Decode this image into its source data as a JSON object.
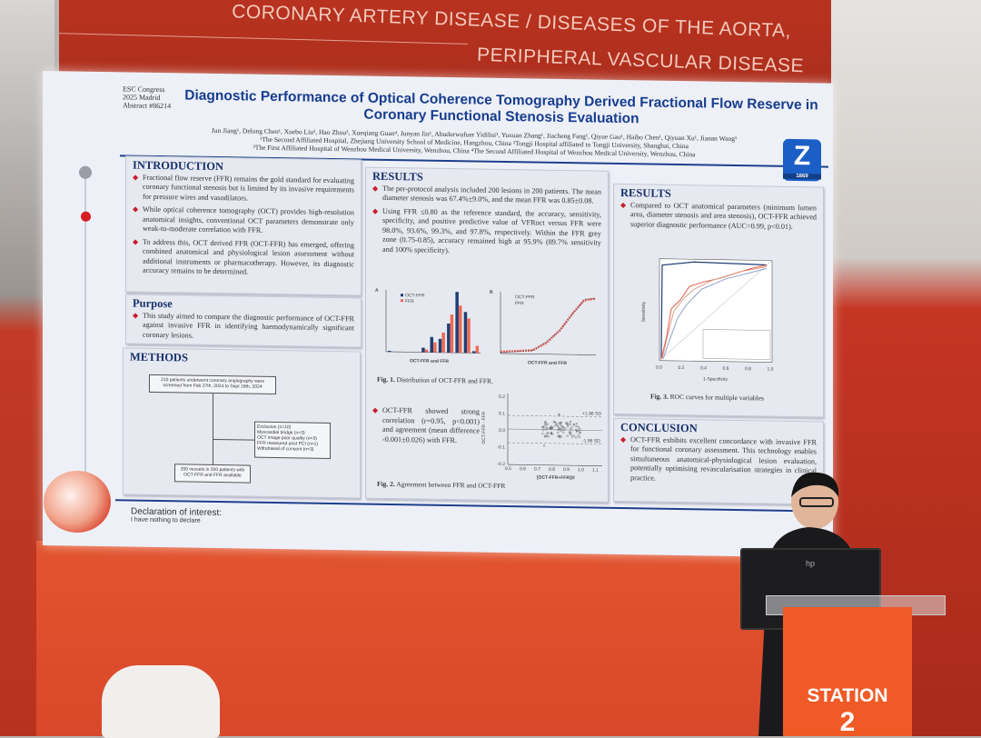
{
  "banner": {
    "line1": "CORONARY ARTERY DISEASE / DISEASES OF THE AORTA,",
    "line2": "PERIPHERAL VASCULAR DISEASE"
  },
  "poster": {
    "esc": [
      "ESC Congress",
      "2025 Madrid",
      "Abstract #86214"
    ],
    "title": "Diagnostic Performance of Optical Coherence Tomography Derived Fractional Flow Reserve in Coronary Functional Stenosis Evaluation",
    "authors": "Jun Jiang¹, Delong Chen¹, Xuebo Liu², Hao Zhou³, Xueqiang Guan⁴, Junyan Jin¹, Abudurwufuer Yidilisi¹, Yuxuan Zhang¹, Jiacheng Fang¹, Qiyue Gao¹, Haibo Chen¹, Qiyuan Xu¹, Jianan Wang¹",
    "affiliation1": "¹The Second Affiliated Hospital, Zhejiang University School of Medicine, Hangzhou, China ²Tongji Hospital affiliated to Tongji University, Shanghai, China",
    "affiliation2": "³The First Affiliated Hospital of Wenzhou Medical University, Wenzhou, China ⁴The Second Affiliated Hospital of Wenzhou Medical University, Wenzhou, China",
    "logo": {
      "letter": "Z",
      "year": "1869"
    },
    "introduction": {
      "heading": "INTRODUCTION",
      "bullets": [
        "Fractional flow reserve (FFR) remains the gold standard for evaluating coronary functional stenosis but is limited by its invasive requirements for pressure wires and vasodilators.",
        "While optical coherence tomography (OCT) provides high-resolution anatomical insights, conventional OCT parameters demonstrate only weak-to-moderate correlation with FFR.",
        "To address this, OCT derived FFR (OCT-FFR) has emerged, offering combined anatomical and physiological lesion assessment without additional instruments or pharmacotherapy. However, its diagnostic accuracy remains to be determined."
      ]
    },
    "purpose": {
      "heading": "Purpose",
      "bullets": [
        "This study aimed to compare the diagnostic performance of OCT-FFR against invasive FFR in identifying haemodynamically significant coronary lesions."
      ]
    },
    "methods": {
      "heading": "METHODS",
      "flow_top": "210 patients underwent coronary angiography were screened from Feb 27th, 2024 to Sept 19th, 2024",
      "flow_exclusion": [
        "Exclusion (n=10)",
        "Myocardial bridge (n=3)",
        "OCT image poor quality (n=3)",
        "FFR measured post PCI (n=1)",
        "Withdrawal of consent (n=3)"
      ],
      "flow_bottom": "200 vessels in 200 patients with OCT-FFR and FFR available"
    },
    "results_mid": {
      "heading": "RESULTS",
      "bullets": [
        "The per-protocol analysis included 200 lesions in 200 patients. The mean diameter stenosis was 67.4%±9.0%, and the mean FFR was 0.85±0.08.",
        "Using FFR ≤0.80 as the reference standard, the accuracy, sensitivity, specificity, and positive predictive value of VFRoct versus FFR were 98.0%, 93.6%, 99.3%, and 97.8%, respectively. Within the FFR grey zone (0.75-0.85), accuracy remained high at 95.9% (89.7% sensitivity and 100% specificity)."
      ],
      "fig1": {
        "panel_a": "A",
        "panel_b": "B",
        "legend": [
          "OCT-FFR",
          "FFR"
        ],
        "xlabel": "OCT-FFR and FFR",
        "caption_bold": "Fig. 1.",
        "caption": " Distribution of OCT-FFR and FFR."
      },
      "bullet3": "OCT-FFR showed strong correlation (r=0.95, p<0.001) and agreement (mean difference -0.001±0.026) with FFR.",
      "fig2": {
        "xlabel": "[OCT-FFR+FFR]/2",
        "ylabel": "OCT-FFR - FFR",
        "upper": "+1.96 SD",
        "lower": "-1.96 SD",
        "yticks": [
          "0.2",
          "0.1",
          "0.0",
          "-0.1",
          "-0.2"
        ],
        "xticks": [
          "0.5",
          "0.6",
          "0.7",
          "0.8",
          "0.9",
          "1.0",
          "1.1"
        ],
        "caption_bold": "Fig. 2.",
        "caption": " Agreement between FFR and OCT-FFR"
      }
    },
    "results_right": {
      "heading": "RESULTS",
      "bullets": [
        "Compared to OCT anatomical parameters (minimum lumen area, diameter stenosis and area stenosis), OCT-FFR achieved superior diagnostic performance (AUC=0.99, p<0.01)."
      ],
      "fig3": {
        "xticks": [
          "0.0",
          "0.2",
          "0.4",
          "0.6",
          "0.8",
          "1.0"
        ],
        "xlabel": "1-Specificity",
        "ylabel": "Sensitivity",
        "caption_bold": "Fig. 3.",
        "caption": " ROC curves for multiple variables"
      }
    },
    "conclusion": {
      "heading": "CONCLUSION",
      "bullets": [
        "OCT-FFR exhibits excellent concordance with invasive FFR for functional coronary assessment. This technology enables simultaneous anatomical-physiological lesion evaluation, potentially optimising revascularisation strategies in clinical practice."
      ]
    },
    "declaration": {
      "heading": "Declaration of interest:",
      "text": "I have nothing to declare"
    }
  },
  "monitor": {
    "brand": "hp"
  },
  "lectern": {
    "label": "STATION",
    "number": "2"
  },
  "colors": {
    "accent_blue": "#163d8f",
    "bullet_red": "#c8202a",
    "stage_orange": "#ef5a26",
    "bar_navy": "#1f3f73",
    "bar_salmon": "#ef6a55"
  }
}
